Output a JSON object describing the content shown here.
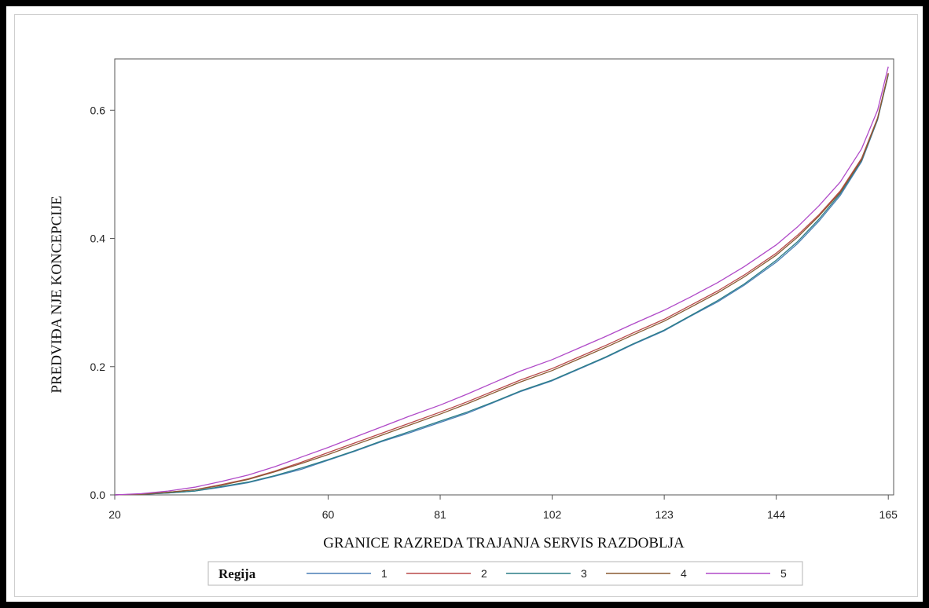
{
  "chart_data": {
    "type": "line",
    "title": "",
    "xlabel": "GRANICE RAZREDA TRAJANJA SERVIS RAZDOBLJA",
    "ylabel": "PREDVIĐA NJE KONCEPCIJE",
    "xlim": [
      20,
      166
    ],
    "ylim": [
      0,
      0.68
    ],
    "x_ticks": [
      "20",
      "60",
      "81",
      "102",
      "123",
      "144",
      "165"
    ],
    "y_ticks": [
      "0.0",
      "0.2",
      "0.4",
      "0.6"
    ],
    "grid": false,
    "legend": {
      "title": "Regija",
      "position": "bottom"
    },
    "x": [
      20,
      25,
      30,
      35,
      40,
      45,
      50,
      55,
      60,
      65,
      70,
      75,
      81,
      86,
      91,
      96,
      102,
      107,
      112,
      117,
      123,
      128,
      133,
      138,
      144,
      148,
      152,
      156,
      160,
      163,
      165
    ],
    "series": [
      {
        "name": "1",
        "color": "#4a7fb5",
        "values": [
          0,
          0.001,
          0.003,
          0.006,
          0.012,
          0.019,
          0.029,
          0.04,
          0.054,
          0.068,
          0.083,
          0.096,
          0.113,
          0.127,
          0.144,
          0.161,
          0.178,
          0.196,
          0.214,
          0.234,
          0.256,
          0.279,
          0.301,
          0.327,
          0.363,
          0.392,
          0.427,
          0.467,
          0.52,
          0.585,
          0.655
        ]
      },
      {
        "name": "2",
        "color": "#b84a4a",
        "values": [
          0,
          0.001,
          0.004,
          0.008,
          0.016,
          0.025,
          0.037,
          0.051,
          0.066,
          0.081,
          0.096,
          0.111,
          0.129,
          0.145,
          0.162,
          0.179,
          0.197,
          0.215,
          0.233,
          0.252,
          0.274,
          0.296,
          0.318,
          0.343,
          0.377,
          0.405,
          0.437,
          0.474,
          0.525,
          0.588,
          0.658
        ]
      },
      {
        "name": "3",
        "color": "#2a7d86",
        "values": [
          0,
          0.001,
          0.003,
          0.006,
          0.013,
          0.02,
          0.03,
          0.042,
          0.055,
          0.069,
          0.084,
          0.098,
          0.115,
          0.129,
          0.145,
          0.162,
          0.179,
          0.197,
          0.215,
          0.235,
          0.257,
          0.28,
          0.303,
          0.329,
          0.366,
          0.395,
          0.43,
          0.47,
          0.522,
          0.586,
          0.656
        ]
      },
      {
        "name": "4",
        "color": "#8a5a32",
        "values": [
          0,
          0.001,
          0.004,
          0.008,
          0.015,
          0.024,
          0.036,
          0.049,
          0.063,
          0.078,
          0.093,
          0.108,
          0.126,
          0.142,
          0.159,
          0.176,
          0.194,
          0.212,
          0.23,
          0.249,
          0.271,
          0.293,
          0.315,
          0.34,
          0.374,
          0.402,
          0.435,
          0.472,
          0.523,
          0.587,
          0.657
        ]
      },
      {
        "name": "5",
        "color": "#b04ac8",
        "values": [
          0,
          0.002,
          0.006,
          0.012,
          0.021,
          0.031,
          0.044,
          0.059,
          0.074,
          0.09,
          0.106,
          0.122,
          0.14,
          0.157,
          0.175,
          0.193,
          0.211,
          0.229,
          0.247,
          0.266,
          0.288,
          0.309,
          0.331,
          0.356,
          0.39,
          0.418,
          0.451,
          0.488,
          0.54,
          0.6,
          0.668
        ]
      }
    ]
  }
}
